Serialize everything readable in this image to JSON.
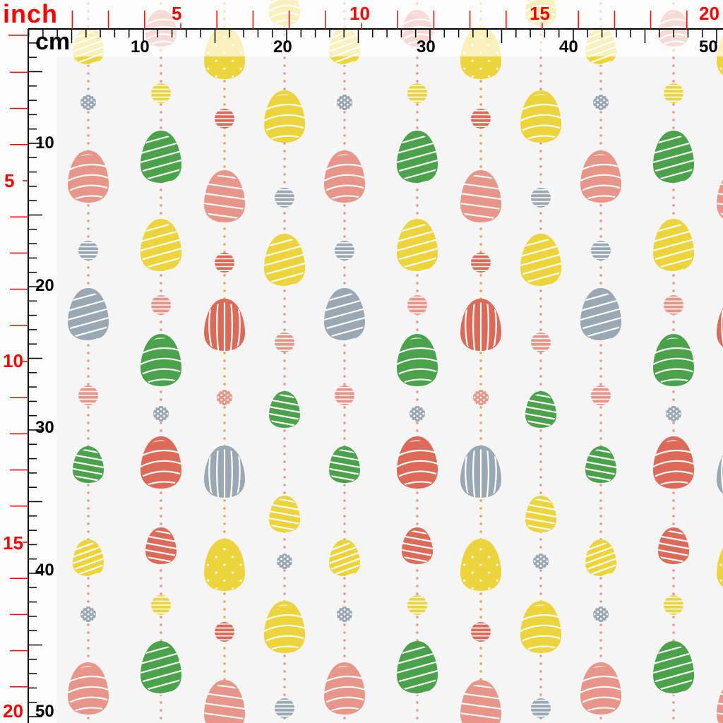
{
  "ruler": {
    "inch_label": "inch",
    "cm_label": "cm",
    "inch_top": [
      "5",
      "10",
      "15",
      "20"
    ],
    "cm_top": [
      "10",
      "20",
      "30",
      "40",
      "50"
    ],
    "inch_left": [
      "5",
      "10",
      "15",
      "20"
    ],
    "cm_left": [
      "10",
      "20",
      "30",
      "40",
      "50"
    ],
    "inch_color": "#ff0000",
    "cm_color": "#000000"
  },
  "fabric": {
    "background": "#f5f5f5",
    "colors": {
      "pink": "#e8968a",
      "red": "#dd6a58",
      "green": "#4aa24a",
      "yellow": "#eed43c",
      "gray": "#9aa8b4",
      "orange": "#e8a844"
    }
  }
}
